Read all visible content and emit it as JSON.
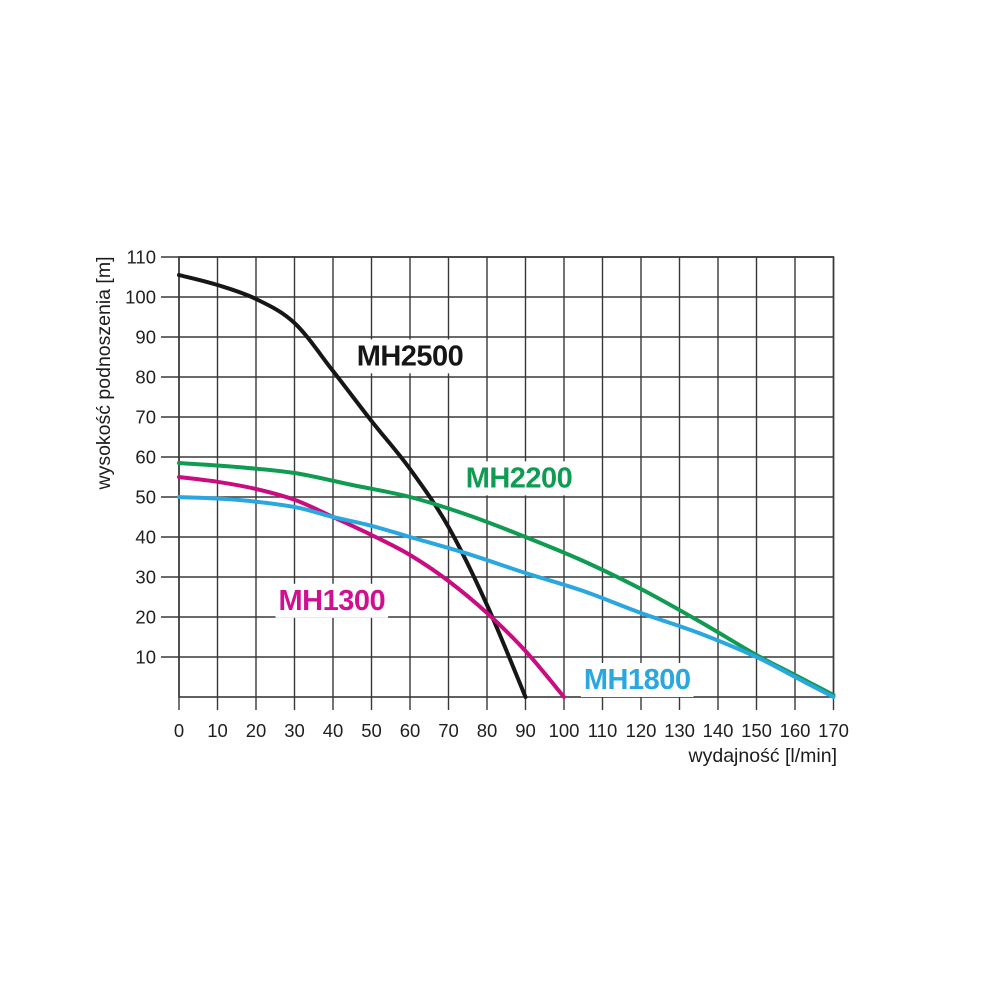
{
  "page": {
    "background": "#ffffff"
  },
  "chart_data": {
    "type": "line",
    "title": "",
    "xlabel": "wydajność [l/min]",
    "ylabel": "wysokość podnoszenia [m]",
    "xlim": [
      0,
      170
    ],
    "ylim": [
      0,
      110
    ],
    "x_ticks": [
      0,
      10,
      20,
      30,
      40,
      50,
      60,
      70,
      80,
      90,
      100,
      110,
      120,
      130,
      140,
      150,
      160,
      170
    ],
    "y_ticks": [
      10,
      20,
      30,
      40,
      50,
      60,
      70,
      80,
      90,
      100,
      110
    ],
    "grid": true,
    "grid_color": "#383838",
    "axis_color": "#383838",
    "tick_label_color": "#1f1f1f",
    "legend_position": "inline-labels",
    "series": [
      {
        "name": "MH2500",
        "label": "MH2500",
        "color": "#161616",
        "label_color": "#161616",
        "label_x": 60,
        "label_y": 85.4,
        "points": [
          [
            0,
            105.5
          ],
          [
            10,
            103
          ],
          [
            20,
            99.5
          ],
          [
            30,
            93.5
          ],
          [
            40,
            81.5
          ],
          [
            50,
            69
          ],
          [
            60,
            57
          ],
          [
            70,
            42.5
          ],
          [
            80,
            23
          ],
          [
            90,
            0
          ]
        ]
      },
      {
        "name": "MH2200",
        "label": "MH2200",
        "color": "#0f9b51",
        "label_color": "#0f9b51",
        "label_x": 88.3,
        "label_y": 54.9,
        "points": [
          [
            0,
            58.5
          ],
          [
            15,
            57.5
          ],
          [
            30,
            56
          ],
          [
            45,
            53
          ],
          [
            60,
            50
          ],
          [
            75,
            45.5
          ],
          [
            90,
            40
          ],
          [
            105,
            34
          ],
          [
            120,
            27
          ],
          [
            135,
            19
          ],
          [
            150,
            10.5
          ],
          [
            160,
            5.5
          ],
          [
            170,
            0.5
          ]
        ]
      },
      {
        "name": "MH1300",
        "label": "MH1300",
        "color": "#c90d80",
        "label_color": "#d01090",
        "label_x": 39.7,
        "label_y": 24.3,
        "points": [
          [
            0,
            55
          ],
          [
            10,
            53.8
          ],
          [
            20,
            52
          ],
          [
            30,
            49.3
          ],
          [
            40,
            45
          ],
          [
            50,
            40.5
          ],
          [
            60,
            35.5
          ],
          [
            70,
            29
          ],
          [
            80,
            21
          ],
          [
            90,
            11.5
          ],
          [
            100,
            0
          ]
        ]
      },
      {
        "name": "MH1800",
        "label": "MH1800",
        "color": "#2aa7df",
        "label_color": "#2aa7df",
        "label_x": 119,
        "label_y": 4.5,
        "points": [
          [
            0,
            50
          ],
          [
            15,
            49.3
          ],
          [
            30,
            47.5
          ],
          [
            40,
            45
          ],
          [
            50,
            42.8
          ],
          [
            60,
            40
          ],
          [
            75,
            35.8
          ],
          [
            90,
            31
          ],
          [
            105,
            26.5
          ],
          [
            120,
            21
          ],
          [
            135,
            16
          ],
          [
            150,
            10
          ],
          [
            160,
            5
          ],
          [
            170,
            0
          ]
        ]
      }
    ]
  }
}
